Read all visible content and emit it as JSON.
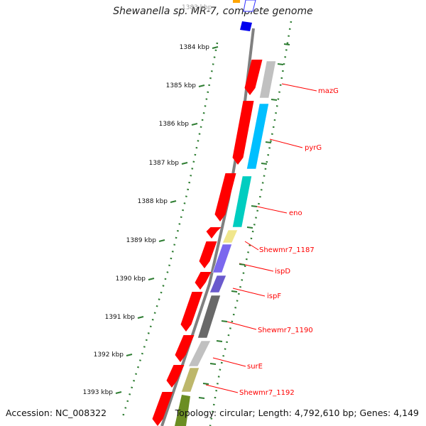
{
  "header": {
    "title": "Shewanella sp. MR-7, complete genome"
  },
  "footer": {
    "accession": "Accession: NC_008322",
    "summary": "Topology: circular; Length: 4,792,610 bp; Genes: 4,149"
  },
  "scale": {
    "partial_label": "1383 kbp",
    "ticks": [
      "1384 kbp",
      "1385 kbp",
      "1386 kbp",
      "1387 kbp",
      "1388 kbp",
      "1389 kbp",
      "1390 kbp",
      "1391 kbp",
      "1392 kbp",
      "1393 kbp"
    ]
  },
  "colors": {
    "forward_strand": "#ff0000",
    "backbone": "#808080",
    "tick_mark": "#2e7d32",
    "label_line": "#ff0000",
    "label_text": "#ff0000"
  },
  "genes": [
    {
      "label": "mazG",
      "color": "#c0c0c0"
    },
    {
      "label": "pyrG",
      "color": "#00bfff"
    },
    {
      "label": "eno",
      "color": "#00cdc0"
    },
    {
      "label": "Shewmr7_1187",
      "color": "#f0e68c"
    },
    {
      "label": "ispD",
      "color": "#7b68ee"
    },
    {
      "label": "ispF",
      "color": "#6a5acd"
    },
    {
      "label": "Shewmr7_1190",
      "color": "#696969"
    },
    {
      "label": "surE",
      "color": "#c0c0c0"
    },
    {
      "label": "Shewmr7_1192",
      "color": "#bdb76b"
    }
  ]
}
